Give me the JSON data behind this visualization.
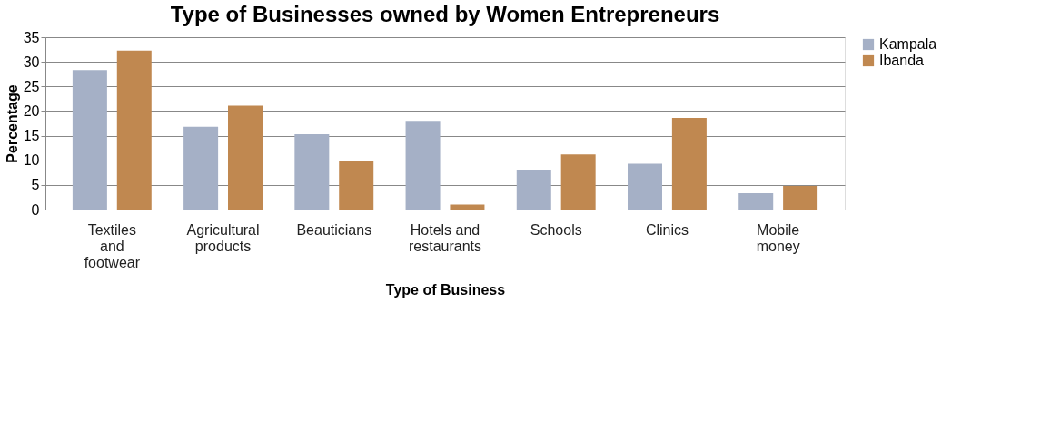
{
  "chart_data": {
    "type": "bar",
    "title": "Type of Businesses owned by Women Entrepreneurs",
    "xlabel": "Type of Business",
    "ylabel": "Percentage",
    "categories": [
      "Textiles\nand\nfootwear",
      "Agricultural\nproducts",
      "Beauticians",
      "Hotels and\nrestaurants",
      "Schools",
      "Clinics",
      "Mobile\nmoney"
    ],
    "series": [
      {
        "name": "Kampala",
        "color": "#a5b0c6",
        "values": [
          28.3,
          16.8,
          15.3,
          18.0,
          8.1,
          9.3,
          3.3
        ]
      },
      {
        "name": "Ibanda",
        "color": "#c08850",
        "values": [
          32.3,
          21.1,
          9.8,
          1.0,
          11.2,
          18.6,
          4.8
        ]
      }
    ],
    "ylim": [
      0,
      35
    ],
    "yticks": [
      0,
      5,
      10,
      15,
      20,
      25,
      30,
      35
    ],
    "grid": "y",
    "legend": "right"
  }
}
